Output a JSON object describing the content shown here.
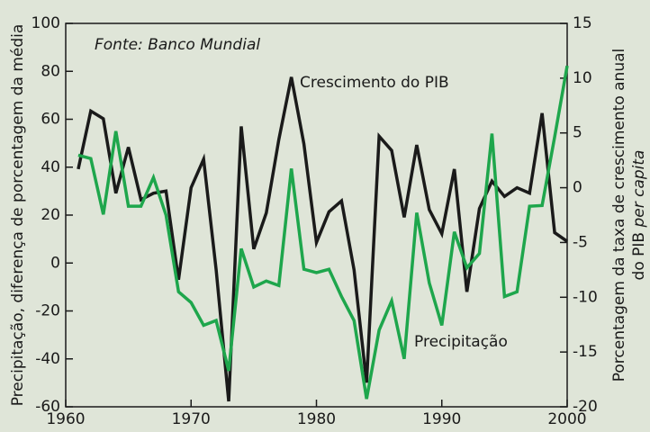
{
  "chart_data": {
    "type": "line",
    "annotations": {
      "source": "Fonte: Banco Mundial",
      "gdp": "Crescimento do PIB",
      "rain": "Precipitação"
    },
    "ylabel": "Precipitação, diferença de porcentagem da média",
    "y2label": {
      "line1": "Porcentagem da taxa de crescimento anual",
      "line2": "do PIB",
      "line2_italic": "per capita"
    },
    "x": [
      1961,
      1962,
      1963,
      1964,
      1965,
      1966,
      1967,
      1968,
      1969,
      1970,
      1971,
      1972,
      1973,
      1974,
      1975,
      1976,
      1977,
      1978,
      1979,
      1980,
      1981,
      1982,
      1983,
      1984,
      1985,
      1986,
      1987,
      1988,
      1989,
      1990,
      1991,
      1992,
      1993,
      1994,
      1995,
      1996,
      1997,
      1998,
      1999,
      2000
    ],
    "series": [
      {
        "name": "Crescimento do PIB",
        "color": "#1a1a1a",
        "axis": "y2",
        "values": [
          1.7,
          7.0,
          6.3,
          -0.5,
          3.7,
          -1.1,
          -0.5,
          -0.3,
          -8.4,
          0.0,
          2.6,
          -7.5,
          -19.5,
          5.6,
          -5.6,
          -2.3,
          4.4,
          10.1,
          4.0,
          -5.0,
          -2.2,
          -1.2,
          -7.5,
          -17.8,
          4.7,
          3.4,
          -2.7,
          3.9,
          -2.0,
          -4.2,
          1.7,
          -9.5,
          -1.9,
          0.6,
          -0.8,
          0.0,
          -0.5,
          6.8,
          -4.1,
          -4.9
        ]
      },
      {
        "name": "Precipitação",
        "color": "#1ea64c",
        "values": [
          45,
          43.6,
          20.3,
          55,
          23.7,
          23.7,
          35.7,
          20,
          -12,
          -16.5,
          -26,
          -24,
          -45,
          6,
          -10,
          -7.5,
          -9.4,
          39.4,
          -2.6,
          -4,
          -2.6,
          -14,
          -24,
          -56.7,
          -28,
          -15.8,
          -40,
          21,
          -8.3,
          -26,
          13,
          -2,
          4,
          54,
          -14,
          -12,
          23.7,
          24,
          52.6,
          82.3
        ]
      }
    ],
    "xlim": [
      1960,
      2000
    ],
    "xticks": [
      1960,
      1970,
      1980,
      1990,
      2000
    ],
    "ylim": [
      -60,
      100
    ],
    "yticks": [
      -60,
      -40,
      -20,
      0,
      20,
      40,
      60,
      80,
      100
    ],
    "y2lim": [
      -20,
      15
    ],
    "y2ticks": [
      -20,
      -15,
      -10,
      -5,
      0,
      5,
      10,
      15
    ]
  }
}
